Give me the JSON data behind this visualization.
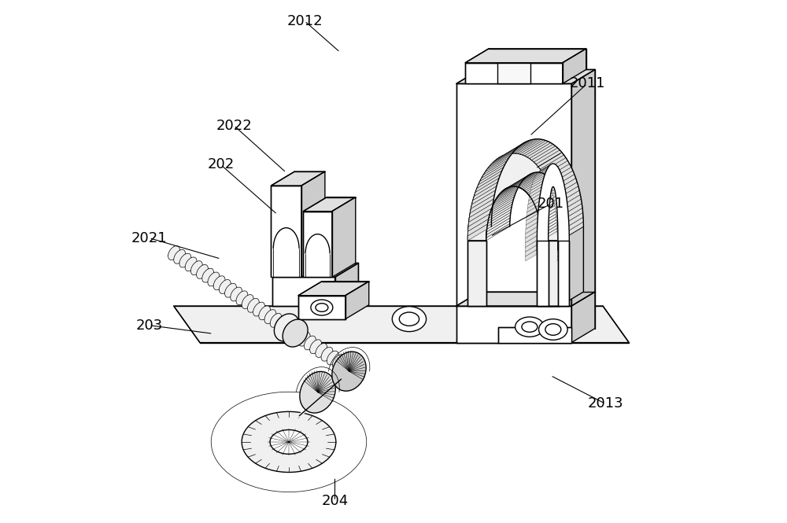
{
  "background_color": "#ffffff",
  "figure_width": 10.0,
  "figure_height": 6.65,
  "dpi": 100,
  "line_color": "#000000",
  "text_color": "#000000",
  "font_size": 13,
  "lw_main": 1.0,
  "lw_thin": 0.6,
  "fc_white": "#ffffff",
  "fc_light": "#f0f0f0",
  "fc_mid": "#e0e0e0",
  "fc_dark": "#cccccc",
  "annotations": [
    {
      "text": "2012",
      "tpos": [
        0.33,
        0.96
      ],
      "apos": [
        0.398,
        0.9
      ]
    },
    {
      "text": "2011",
      "tpos": [
        0.87,
        0.84
      ],
      "apos": [
        0.76,
        0.74
      ]
    },
    {
      "text": "2022",
      "tpos": [
        0.195,
        0.76
      ],
      "apos": [
        0.295,
        0.67
      ]
    },
    {
      "text": "202",
      "tpos": [
        0.17,
        0.685
      ],
      "apos": [
        0.278,
        0.59
      ]
    },
    {
      "text": "201",
      "tpos": [
        0.8,
        0.61
      ],
      "apos": [
        0.685,
        0.548
      ]
    },
    {
      "text": "2021",
      "tpos": [
        0.033,
        0.545
      ],
      "apos": [
        0.17,
        0.505
      ]
    },
    {
      "text": "203",
      "tpos": [
        0.033,
        0.378
      ],
      "apos": [
        0.155,
        0.362
      ]
    },
    {
      "text": "2013",
      "tpos": [
        0.905,
        0.228
      ],
      "apos": [
        0.8,
        0.282
      ]
    },
    {
      "text": "204",
      "tpos": [
        0.388,
        0.042
      ],
      "apos": [
        0.388,
        0.088
      ]
    }
  ]
}
